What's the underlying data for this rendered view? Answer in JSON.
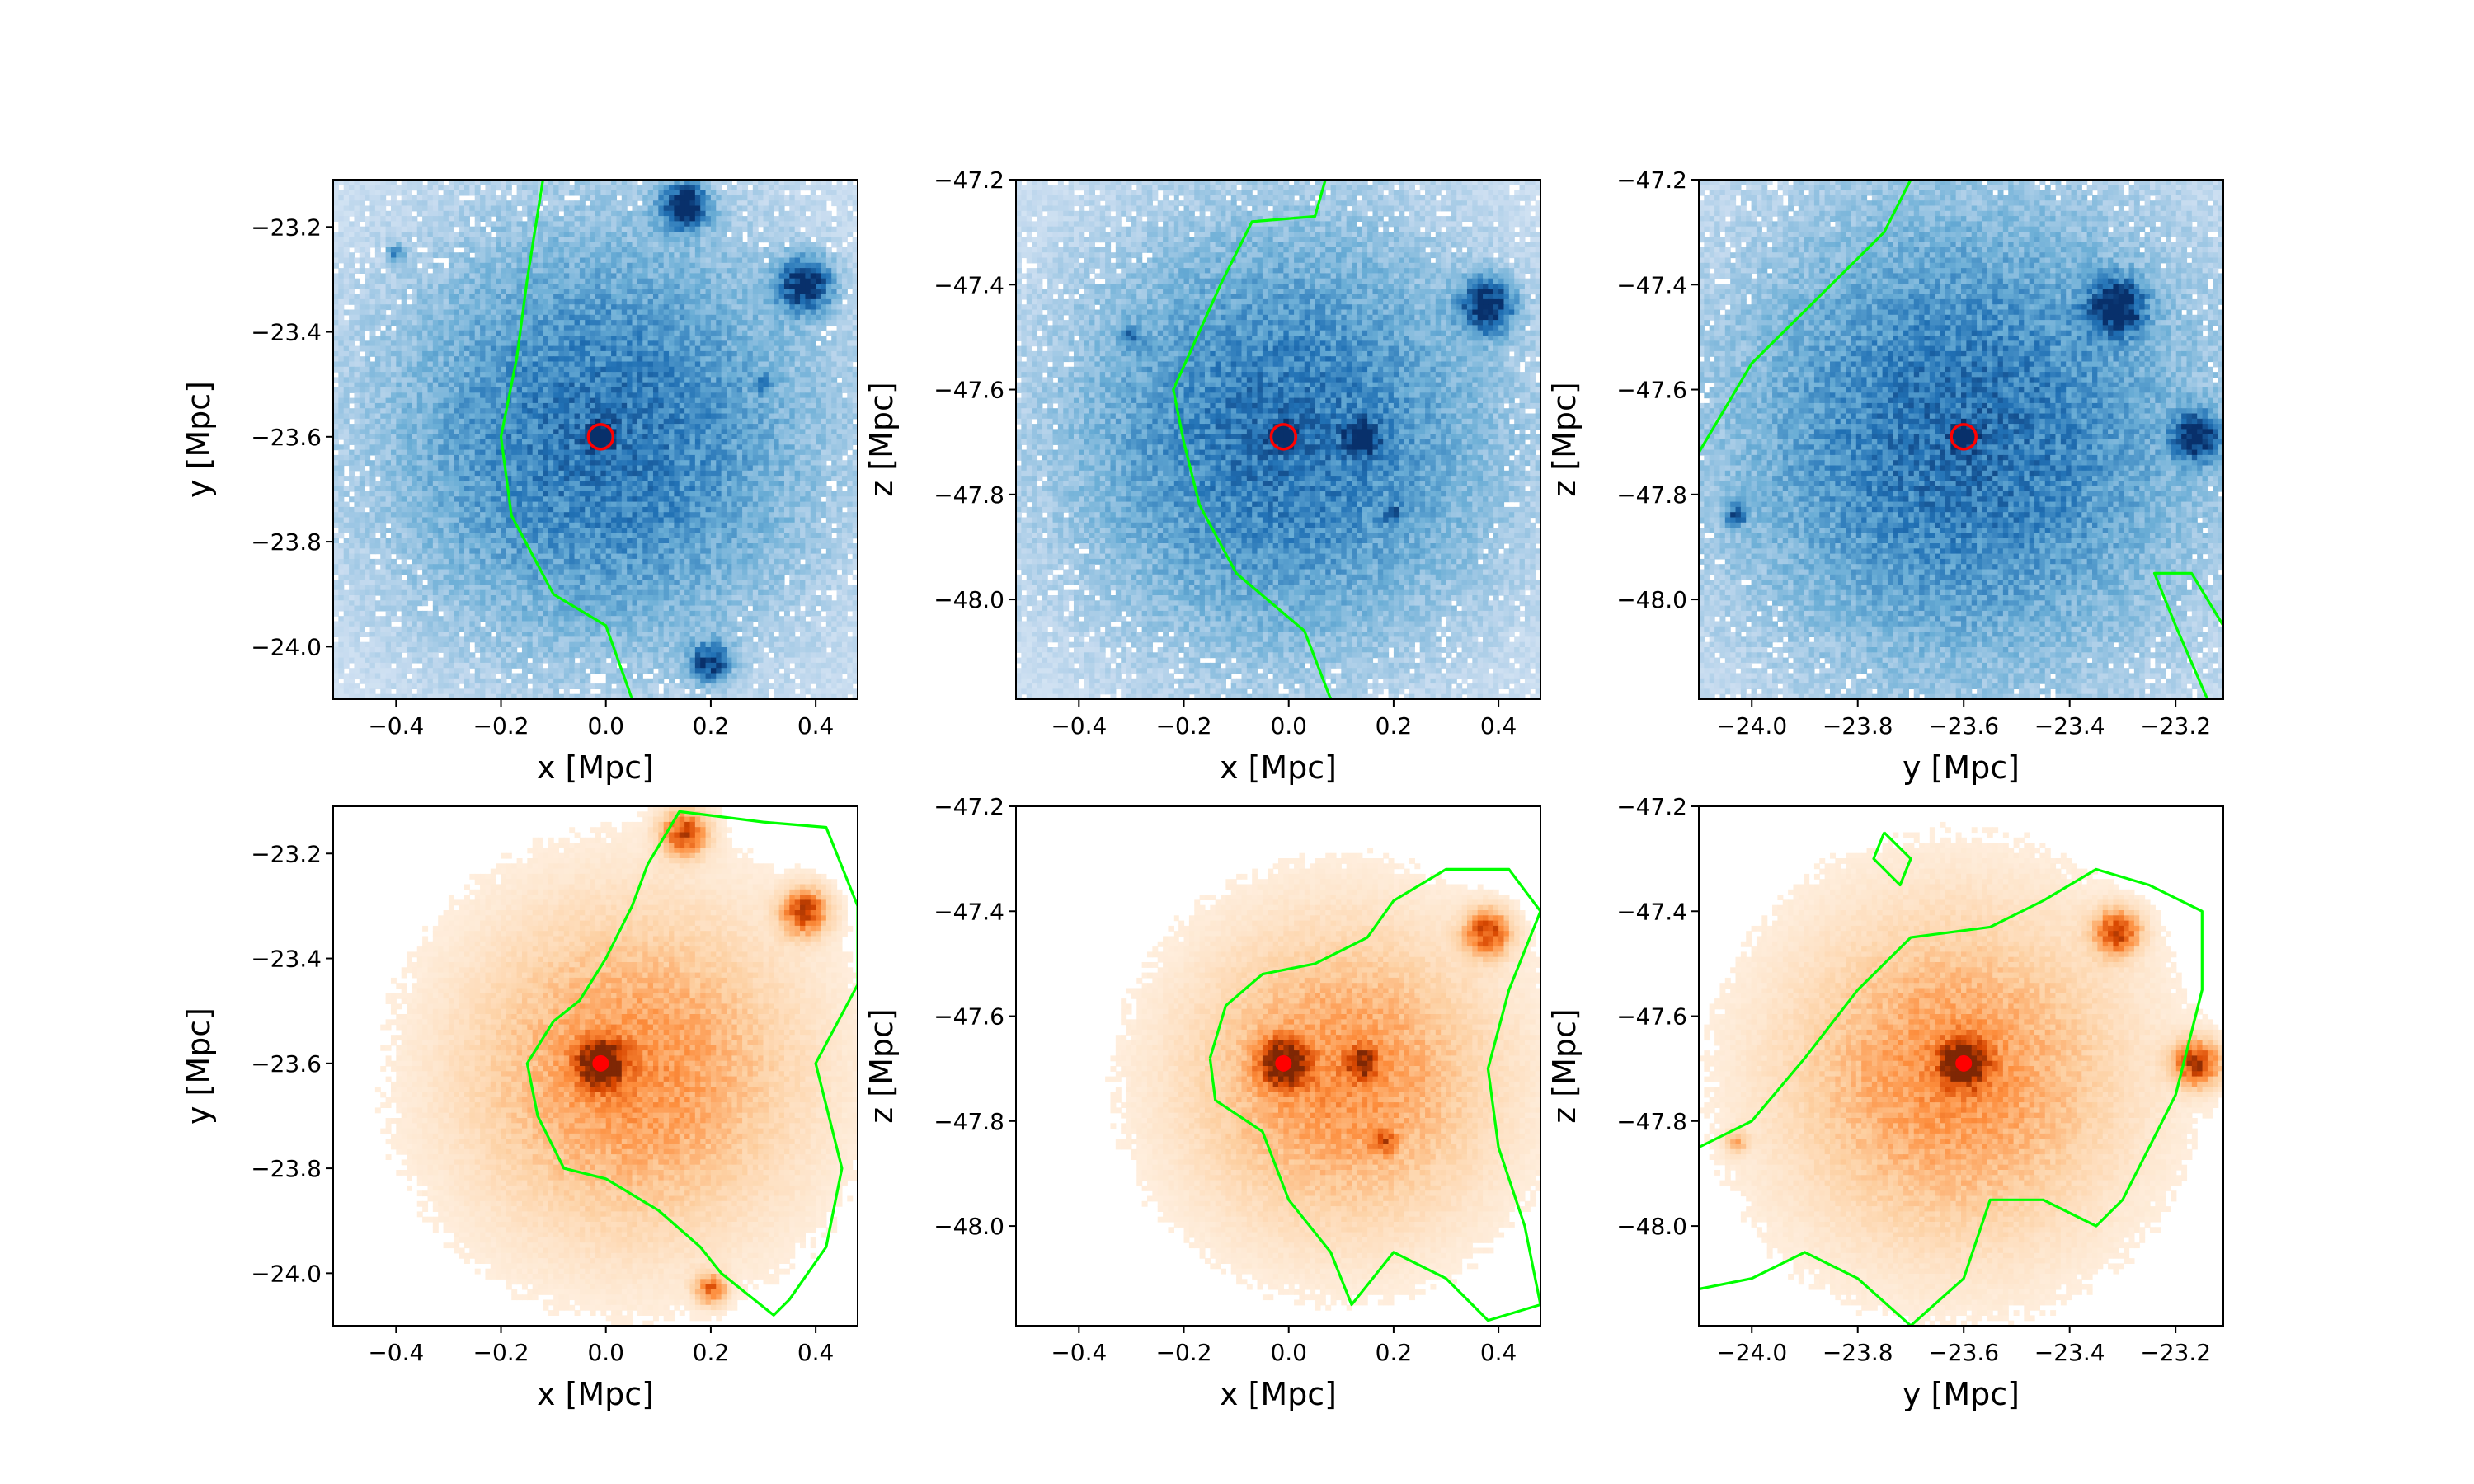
{
  "figure": {
    "description_free": true
  },
  "chart_data": [
    {
      "type": "heatmap",
      "panel": "top-left",
      "colormap": "blues",
      "xlabel": "x [Mpc]",
      "ylabel": "y [Mpc]",
      "xlim": [
        -0.52,
        0.48
      ],
      "ylim": [
        -24.1,
        -23.11
      ],
      "xticks": [
        -0.4,
        -0.2,
        0.0,
        0.2,
        0.4
      ],
      "xtick_labels": [
        "−0.4",
        "−0.2",
        "0.0",
        "0.2",
        "0.4"
      ],
      "yticks": [
        -24.0,
        -23.8,
        -23.6,
        -23.4,
        -23.2
      ],
      "ytick_labels": [
        "−24.0",
        "−23.8",
        "−23.6",
        "−23.4",
        "−23.2"
      ],
      "center": [
        -0.01,
        -23.6
      ],
      "background": 0.18,
      "halo": {
        "amp": 0.55,
        "sigma": 0.3
      },
      "clumps": [
        [
          0.15,
          -23.16,
          0.9,
          0.03
        ],
        [
          0.38,
          -23.31,
          0.8,
          0.035
        ],
        [
          0.2,
          -24.03,
          0.7,
          0.025
        ],
        [
          -0.01,
          -23.6,
          1.0,
          0.015
        ],
        [
          -0.4,
          -23.25,
          0.35,
          0.012
        ],
        [
          0.3,
          -23.5,
          0.35,
          0.012
        ]
      ],
      "contour_color": "#00ff00",
      "contours": [
        [
          [
            -0.12,
            -23.11
          ],
          [
            -0.15,
            -23.3
          ],
          [
            -0.17,
            -23.45
          ],
          [
            -0.2,
            -23.6
          ],
          [
            -0.18,
            -23.75
          ],
          [
            -0.1,
            -23.9
          ],
          [
            0.0,
            -23.96
          ],
          [
            0.05,
            -24.1
          ]
        ]
      ],
      "marker": {
        "x": -0.01,
        "y": -23.6,
        "style": "ring",
        "color": "#ff0000"
      }
    },
    {
      "type": "heatmap",
      "panel": "top-middle",
      "colormap": "blues",
      "xlabel": "x [Mpc]",
      "ylabel": "z [Mpc]",
      "xlim": [
        -0.52,
        0.48
      ],
      "ylim": [
        -48.19,
        -47.2
      ],
      "xticks": [
        -0.4,
        -0.2,
        0.0,
        0.2,
        0.4
      ],
      "xtick_labels": [
        "−0.4",
        "−0.2",
        "0.0",
        "0.2",
        "0.4"
      ],
      "yticks": [
        -48.0,
        -47.8,
        -47.6,
        -47.4,
        -47.2
      ],
      "ytick_labels": [
        "−48.0",
        "−47.8",
        "−47.6",
        "−47.4",
        "−47.2"
      ],
      "center": [
        -0.01,
        -47.69
      ],
      "background": 0.18,
      "halo": {
        "amp": 0.55,
        "sigma": 0.3
      },
      "clumps": [
        [
          0.38,
          -47.44,
          0.8,
          0.035
        ],
        [
          0.14,
          -47.69,
          0.75,
          0.02
        ],
        [
          -0.01,
          -47.69,
          1.0,
          0.015
        ],
        [
          -0.3,
          -47.5,
          0.3,
          0.015
        ],
        [
          0.2,
          -47.84,
          0.35,
          0.012
        ]
      ],
      "contour_color": "#00ff00",
      "contours": [
        [
          [
            0.07,
            -47.2
          ],
          [
            0.05,
            -47.27
          ],
          [
            -0.07,
            -47.28
          ],
          [
            -0.13,
            -47.4
          ],
          [
            -0.22,
            -47.6
          ],
          [
            -0.2,
            -47.7
          ],
          [
            -0.17,
            -47.82
          ],
          [
            -0.1,
            -47.95
          ],
          [
            0.03,
            -48.06
          ],
          [
            0.08,
            -48.19
          ]
        ]
      ],
      "marker": {
        "x": -0.01,
        "y": -47.69,
        "style": "ring",
        "color": "#ff0000"
      }
    },
    {
      "type": "heatmap",
      "panel": "top-right",
      "colormap": "blues",
      "xlabel": "y [Mpc]",
      "ylabel": "z [Mpc]",
      "xlim": [
        -24.1,
        -23.11
      ],
      "ylim": [
        -48.19,
        -47.2
      ],
      "xticks": [
        -24.0,
        -23.8,
        -23.6,
        -23.4,
        -23.2
      ],
      "xtick_labels": [
        "−24.0",
        "−23.8",
        "−23.6",
        "−23.4",
        "−23.2"
      ],
      "yticks": [
        -48.0,
        -47.8,
        -47.6,
        -47.4,
        -47.2
      ],
      "ytick_labels": [
        "−48.0",
        "−47.8",
        "−47.6",
        "−47.4",
        "−47.2"
      ],
      "center": [
        -23.6,
        -47.69
      ],
      "background": 0.2,
      "halo": {
        "amp": 0.55,
        "sigma": 0.32
      },
      "clumps": [
        [
          -23.31,
          -47.44,
          0.8,
          0.035
        ],
        [
          -23.16,
          -47.69,
          0.8,
          0.03
        ],
        [
          -23.6,
          -47.69,
          1.0,
          0.015
        ],
        [
          -24.03,
          -47.84,
          0.45,
          0.015
        ]
      ],
      "contour_color": "#00ff00",
      "contours": [
        [
          [
            -23.7,
            -47.2
          ],
          [
            -23.75,
            -47.3
          ],
          [
            -23.9,
            -47.45
          ],
          [
            -24.0,
            -47.55
          ],
          [
            -24.1,
            -47.72
          ]
        ],
        [
          [
            -23.14,
            -48.19
          ],
          [
            -23.2,
            -48.05
          ],
          [
            -23.24,
            -47.95
          ],
          [
            -23.17,
            -47.95
          ],
          [
            -23.11,
            -48.05
          ]
        ]
      ],
      "marker": {
        "x": -23.6,
        "y": -47.69,
        "style": "ring",
        "color": "#ff0000"
      }
    },
    {
      "type": "heatmap",
      "panel": "bottom-left",
      "colormap": "oranges",
      "xlabel": "x [Mpc]",
      "ylabel": "y [Mpc]",
      "xlim": [
        -0.52,
        0.48
      ],
      "ylim": [
        -24.1,
        -23.11
      ],
      "xticks": [
        -0.4,
        -0.2,
        0.0,
        0.2,
        0.4
      ],
      "xtick_labels": [
        "−0.4",
        "−0.2",
        "0.0",
        "0.2",
        "0.4"
      ],
      "yticks": [
        -24.0,
        -23.8,
        -23.6,
        -23.4,
        -23.2
      ],
      "ytick_labels": [
        "−24.0",
        "−23.8",
        "−23.6",
        "−23.4",
        "−23.2"
      ],
      "center": [
        0.05,
        -23.62
      ],
      "background": 0.0,
      "halo": {
        "amp": 0.5,
        "sigma": 0.22
      },
      "clumps": [
        [
          0.15,
          -23.16,
          0.75,
          0.03
        ],
        [
          0.38,
          -23.31,
          0.8,
          0.03
        ],
        [
          0.2,
          -24.03,
          0.6,
          0.02
        ],
        [
          -0.01,
          -23.6,
          1.0,
          0.03
        ]
      ],
      "contour_color": "#00ff00",
      "contours": [
        [
          [
            0.05,
            -23.3
          ],
          [
            0.08,
            -23.22
          ],
          [
            0.14,
            -23.12
          ],
          [
            0.3,
            -23.14
          ],
          [
            0.42,
            -23.15
          ],
          [
            0.48,
            -23.3
          ],
          [
            0.48,
            -23.45
          ],
          [
            0.4,
            -23.6
          ],
          [
            0.45,
            -23.8
          ],
          [
            0.42,
            -23.95
          ],
          [
            0.35,
            -24.05
          ],
          [
            0.32,
            -24.08
          ],
          [
            0.22,
            -24.0
          ],
          [
            0.18,
            -23.95
          ],
          [
            0.1,
            -23.88
          ],
          [
            0.0,
            -23.82
          ],
          [
            -0.08,
            -23.8
          ],
          [
            -0.13,
            -23.7
          ],
          [
            -0.15,
            -23.6
          ],
          [
            -0.1,
            -23.52
          ],
          [
            -0.05,
            -23.48
          ],
          [
            0.0,
            -23.4
          ],
          [
            0.05,
            -23.3
          ]
        ]
      ],
      "marker": {
        "x": -0.01,
        "y": -23.6,
        "style": "dot",
        "color": "#ff0000"
      }
    },
    {
      "type": "heatmap",
      "panel": "bottom-middle",
      "colormap": "oranges",
      "xlabel": "x [Mpc]",
      "ylabel": "z [Mpc]",
      "xlim": [
        -0.52,
        0.48
      ],
      "ylim": [
        -48.19,
        -47.2
      ],
      "xticks": [
        -0.4,
        -0.2,
        0.0,
        0.2,
        0.4
      ],
      "xtick_labels": [
        "−0.4",
        "−0.2",
        "0.0",
        "0.2",
        "0.4"
      ],
      "yticks": [
        -48.0,
        -47.8,
        -47.6,
        -47.4,
        -47.2
      ],
      "ytick_labels": [
        "−48.0",
        "−47.8",
        "−47.6",
        "−47.4",
        "−47.2"
      ],
      "center": [
        0.1,
        -47.72
      ],
      "background": 0.0,
      "halo": {
        "amp": 0.5,
        "sigma": 0.2
      },
      "clumps": [
        [
          0.38,
          -47.44,
          0.75,
          0.03
        ],
        [
          0.14,
          -47.69,
          0.7,
          0.02
        ],
        [
          -0.01,
          -47.69,
          1.0,
          0.03
        ],
        [
          0.18,
          -47.84,
          0.45,
          0.015
        ]
      ],
      "contour_color": "#00ff00",
      "contours": [
        [
          [
            -0.15,
            -47.68
          ],
          [
            -0.12,
            -47.58
          ],
          [
            -0.05,
            -47.52
          ],
          [
            0.05,
            -47.5
          ],
          [
            0.15,
            -47.45
          ],
          [
            0.2,
            -47.38
          ],
          [
            0.3,
            -47.32
          ],
          [
            0.42,
            -47.32
          ],
          [
            0.48,
            -47.4
          ],
          [
            0.42,
            -47.55
          ],
          [
            0.38,
            -47.7
          ],
          [
            0.4,
            -47.85
          ],
          [
            0.45,
            -48.0
          ],
          [
            0.48,
            -48.15
          ],
          [
            0.38,
            -48.18
          ],
          [
            0.3,
            -48.1
          ],
          [
            0.2,
            -48.05
          ],
          [
            0.12,
            -48.15
          ],
          [
            0.08,
            -48.05
          ],
          [
            0.0,
            -47.95
          ],
          [
            -0.05,
            -47.82
          ],
          [
            -0.14,
            -47.76
          ],
          [
            -0.15,
            -47.68
          ]
        ]
      ],
      "marker": {
        "x": -0.01,
        "y": -47.69,
        "style": "dot",
        "color": "#ff0000"
      }
    },
    {
      "type": "heatmap",
      "panel": "bottom-right",
      "colormap": "oranges",
      "xlabel": "y [Mpc]",
      "ylabel": "z [Mpc]",
      "xlim": [
        -24.1,
        -23.11
      ],
      "ylim": [
        -48.19,
        -47.2
      ],
      "xticks": [
        -24.0,
        -23.8,
        -23.6,
        -23.4,
        -23.2
      ],
      "xtick_labels": [
        "−24.0",
        "−23.8",
        "−23.6",
        "−23.4",
        "−23.2"
      ],
      "yticks": [
        -48.0,
        -47.8,
        -47.6,
        -47.4,
        -47.2
      ],
      "ytick_labels": [
        "−48.0",
        "−47.8",
        "−47.6",
        "−47.4",
        "−47.2"
      ],
      "center": [
        -23.62,
        -47.72
      ],
      "background": 0.0,
      "halo": {
        "amp": 0.5,
        "sigma": 0.22
      },
      "clumps": [
        [
          -23.31,
          -47.44,
          0.75,
          0.03
        ],
        [
          -23.16,
          -47.69,
          0.85,
          0.03
        ],
        [
          -23.6,
          -47.69,
          1.0,
          0.03
        ],
        [
          -24.03,
          -47.84,
          0.35,
          0.015
        ]
      ],
      "contour_color": "#00ff00",
      "contours": [
        [
          [
            -24.1,
            -47.85
          ],
          [
            -24.0,
            -47.8
          ],
          [
            -23.9,
            -47.68
          ],
          [
            -23.8,
            -47.55
          ],
          [
            -23.7,
            -47.45
          ],
          [
            -23.55,
            -47.43
          ],
          [
            -23.45,
            -47.38
          ],
          [
            -23.35,
            -47.32
          ],
          [
            -23.25,
            -47.35
          ],
          [
            -23.15,
            -47.4
          ],
          [
            -23.15,
            -47.55
          ],
          [
            -23.2,
            -47.75
          ],
          [
            -23.25,
            -47.85
          ],
          [
            -23.3,
            -47.95
          ],
          [
            -23.35,
            -48.0
          ],
          [
            -23.45,
            -47.95
          ],
          [
            -23.55,
            -47.95
          ],
          [
            -23.6,
            -48.1
          ],
          [
            -23.7,
            -48.19
          ],
          [
            -23.8,
            -48.1
          ],
          [
            -23.9,
            -48.05
          ],
          [
            -24.0,
            -48.1
          ],
          [
            -24.1,
            -48.12
          ]
        ],
        [
          [
            -23.75,
            -47.25
          ],
          [
            -23.7,
            -47.3
          ],
          [
            -23.72,
            -47.35
          ],
          [
            -23.77,
            -47.3
          ],
          [
            -23.75,
            -47.25
          ]
        ]
      ],
      "marker": {
        "x": -23.6,
        "y": -47.69,
        "style": "dot",
        "color": "#ff0000"
      }
    }
  ]
}
